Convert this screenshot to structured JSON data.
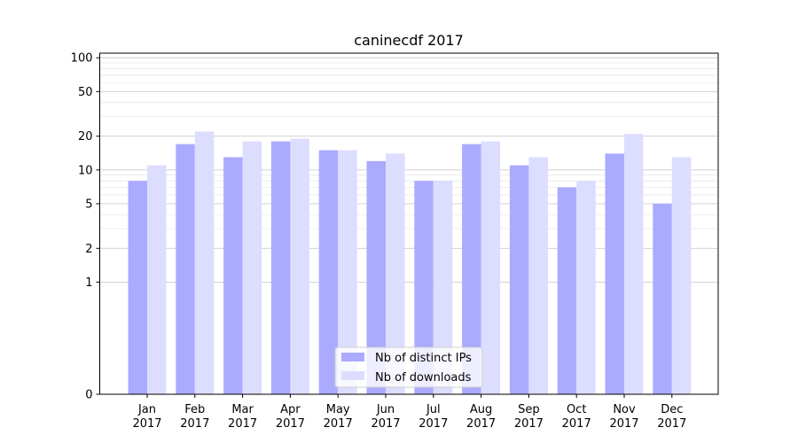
{
  "chart_data": {
    "type": "bar",
    "title": "caninecdf 2017",
    "xlabel": "",
    "ylabel": "",
    "y_scale": "symlog",
    "ylim": [
      0,
      110
    ],
    "y_ticks": [
      0,
      1,
      2,
      5,
      10,
      20,
      50,
      100
    ],
    "y_tick_labels": [
      "0",
      "1",
      "2",
      "5",
      "10",
      "20",
      "50",
      "100"
    ],
    "grid": true,
    "legend_position": "bottom-center",
    "categories": [
      [
        "Jan",
        "2017"
      ],
      [
        "Feb",
        "2017"
      ],
      [
        "Mar",
        "2017"
      ],
      [
        "Apr",
        "2017"
      ],
      [
        "May",
        "2017"
      ],
      [
        "Jun",
        "2017"
      ],
      [
        "Jul",
        "2017"
      ],
      [
        "Aug",
        "2017"
      ],
      [
        "Sep",
        "2017"
      ],
      [
        "Oct",
        "2017"
      ],
      [
        "Nov",
        "2017"
      ],
      [
        "Dec",
        "2017"
      ]
    ],
    "series": [
      {
        "name": "Nb of distinct IPs",
        "color": "#aaaaff",
        "values": [
          8,
          17,
          13,
          18,
          15,
          12,
          8,
          17,
          11,
          7,
          14,
          5
        ]
      },
      {
        "name": "Nb of downloads",
        "color": "#ddddff",
        "values": [
          11,
          22,
          18,
          19,
          15,
          14,
          8,
          18,
          13,
          8,
          21,
          13
        ]
      }
    ]
  }
}
